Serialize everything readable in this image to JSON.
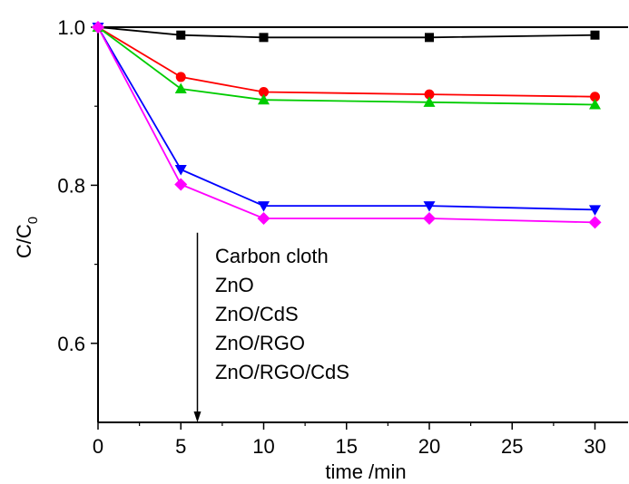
{
  "chart_data": {
    "type": "line",
    "title": "",
    "xlabel": "time /min",
    "ylabel": "C/C",
    "ylabel_subscript": "0",
    "xlim": [
      0,
      32
    ],
    "ylim": [
      0.5,
      1.0
    ],
    "x_ticks": [
      0,
      5,
      10,
      15,
      20,
      25,
      30
    ],
    "y_ticks": [
      0.6,
      0.8,
      1.0
    ],
    "x_tick_labels": [
      "0",
      "5",
      "10",
      "15",
      "20",
      "25",
      "30"
    ],
    "y_tick_labels": [
      "0.6",
      "0.8",
      "1.0"
    ],
    "grid": false,
    "legend_placement": "center",
    "x": [
      0,
      5,
      10,
      20,
      30
    ],
    "series": [
      {
        "name": "Carbon cloth",
        "values": [
          1.0,
          0.99,
          0.987,
          0.987,
          0.99
        ],
        "color": "#000000",
        "marker": "square"
      },
      {
        "name": "ZnO",
        "values": [
          1.0,
          0.937,
          0.918,
          0.915,
          0.912
        ],
        "color": "#ff0000",
        "marker": "circle"
      },
      {
        "name": "ZnO/CdS",
        "values": [
          1.0,
          0.922,
          0.908,
          0.905,
          0.902
        ],
        "color": "#00cc00",
        "marker": "triangle-up"
      },
      {
        "name": "ZnO/RGO",
        "values": [
          1.0,
          0.82,
          0.774,
          0.774,
          0.769
        ],
        "color": "#0000ff",
        "marker": "triangle-down"
      },
      {
        "name": "ZnO/RGO/CdS",
        "values": [
          1.0,
          0.801,
          0.758,
          0.758,
          0.753
        ],
        "color": "#ff00ff",
        "marker": "diamond"
      }
    ],
    "annotations": [
      {
        "type": "arrow",
        "direction": "down",
        "x": 6,
        "y_from": 0.74,
        "y_to": 0.5
      }
    ]
  }
}
